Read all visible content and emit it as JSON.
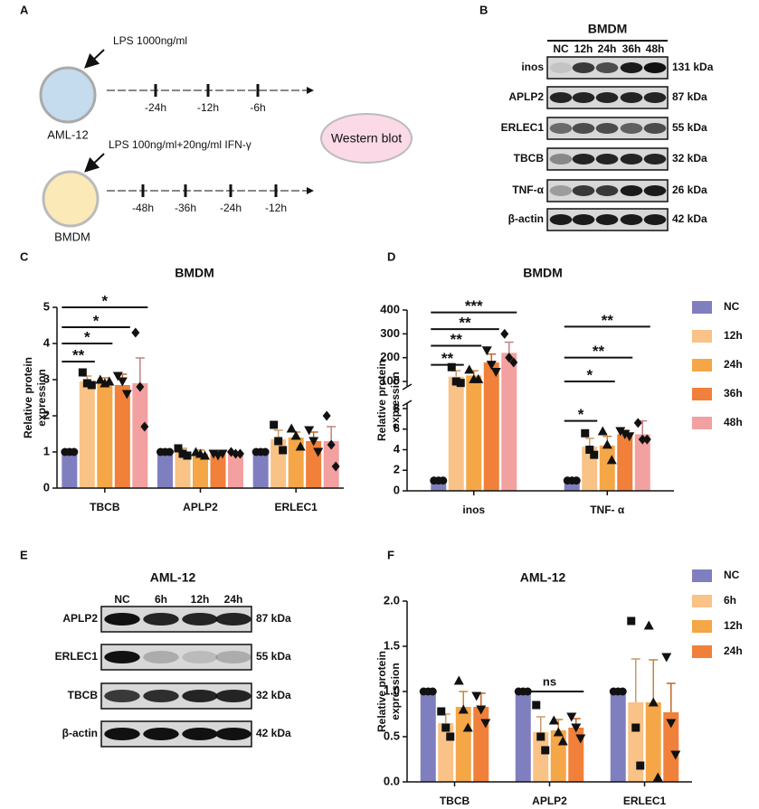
{
  "panel_labels": [
    "A",
    "B",
    "C",
    "D",
    "E",
    "F"
  ],
  "panel_a": {
    "groups": [
      {
        "cell": "AML-12",
        "treatment": "LPS 1000ng/ml",
        "timepoints": [
          "-24h",
          "-12h",
          "-6h"
        ]
      },
      {
        "cell": "BMDM",
        "treatment": "LPS 100ng/ml+20ng/ml IFN-γ",
        "timepoints": [
          "-48h",
          "-36h",
          "-24h",
          "-12h"
        ]
      }
    ],
    "endpoint": "Western blot"
  },
  "blots": [
    {
      "title": "BMDM",
      "lanes": [
        "NC",
        "12h",
        "24h",
        "36h",
        "48h"
      ],
      "rows": [
        {
          "protein": "inos",
          "size": "131 kDa"
        },
        {
          "protein": "APLP2",
          "size": "87 kDa"
        },
        {
          "protein": "ERLEC1",
          "size": "55 kDa"
        },
        {
          "protein": "TBCB",
          "size": "32 kDa"
        },
        {
          "protein": "TNF-α",
          "size": "26 kDa"
        },
        {
          "protein": "β-actin",
          "size": "42 kDa"
        }
      ]
    },
    {
      "title": "AML-12",
      "lanes": [
        "NC",
        "6h",
        "12h",
        "24h"
      ],
      "rows": [
        {
          "protein": "APLP2",
          "size": "87 kDa"
        },
        {
          "protein": "ERLEC1",
          "size": "55 kDa"
        },
        {
          "protein": "TBCB",
          "size": "32 kDa"
        },
        {
          "protein": "β-actin",
          "size": "42 kDa"
        }
      ]
    }
  ],
  "chart_data": [
    {
      "type": "bar",
      "title": "BMDM",
      "y_label": [
        "Relative protein",
        "expression"
      ],
      "categories": [
        "TBCB",
        "APLP2",
        "ERLEC1"
      ],
      "ylim": [
        0,
        5
      ],
      "yticks": [
        0,
        1,
        2,
        3,
        4,
        5
      ],
      "legend": false,
      "series": [
        {
          "color": "#7f7fc0",
          "marker": "circle",
          "values": [
            1,
            1,
            1
          ],
          "points": [
            [
              1,
              1,
              1
            ],
            [
              1,
              1,
              1
            ],
            [
              1,
              1,
              1
            ]
          ]
        },
        {
          "color": "#f9c286",
          "marker": "square",
          "values": [
            2.95,
            1,
            1.35
          ],
          "errors": [
            0.15,
            0.1,
            0.25
          ],
          "points": [
            [
              3.2,
              2.9,
              2.85
            ],
            [
              1.1,
              0.95,
              0.9
            ],
            [
              1.75,
              1.3,
              1.05
            ]
          ]
        },
        {
          "color": "#f5a646",
          "marker": "triangle",
          "values": [
            2.95,
            0.95,
            1.4
          ],
          "errors": [
            0.1,
            0.1,
            0.15
          ],
          "points": [
            [
              3.0,
              2.9,
              2.95
            ],
            [
              1.0,
              0.95,
              0.9
            ],
            [
              1.65,
              1.45,
              1.15
            ]
          ]
        },
        {
          "color": "#f0803a",
          "marker": "triangle-down",
          "values": [
            2.85,
            0.95,
            1.3
          ],
          "errors": [
            0.3,
            0.05,
            0.25
          ],
          "points": [
            [
              3.1,
              2.95,
              2.6
            ],
            [
              0.95,
              0.9,
              0.95
            ],
            [
              1.6,
              1.3,
              1.0
            ]
          ]
        },
        {
          "color": "#f3a0a0",
          "marker": "diamond",
          "values": [
            2.9,
            0.95,
            1.3
          ],
          "errors": [
            0.7,
            0.05,
            0.4
          ],
          "points": [
            [
              4.3,
              2.8,
              1.7
            ],
            [
              1.0,
              0.95,
              0.95
            ],
            [
              2.0,
              1.2,
              0.6
            ]
          ]
        }
      ],
      "annotations": [
        {
          "text": "**",
          "group": 0,
          "from": 0,
          "to": 1,
          "y": 3.5
        },
        {
          "text": "*",
          "group": 0,
          "from": 0,
          "to": 2,
          "y": 4.0
        },
        {
          "text": "*",
          "group": 0,
          "from": 0,
          "to": 3,
          "y": 4.45
        },
        {
          "text": "*",
          "group": 0,
          "from": 0,
          "to": 4,
          "y": 5.0
        }
      ]
    },
    {
      "type": "bar",
      "title": "BMDM",
      "y_label": [
        "Relative protein",
        "expression"
      ],
      "categories": [
        "inos",
        "TNF- α"
      ],
      "ylim": [
        0,
        400
      ],
      "ybreak": [
        8,
        100
      ],
      "yticks": [
        0,
        2,
        4,
        6,
        8,
        100,
        200,
        300,
        400
      ],
      "legend": true,
      "series": [
        {
          "name": "NC",
          "color": "#7f7fc0",
          "marker": "circle",
          "values": [
            1,
            1
          ],
          "points": [
            [
              1,
              1,
              1
            ],
            [
              1,
              1,
              1
            ]
          ]
        },
        {
          "name": "12h",
          "color": "#f9c286",
          "marker": "square",
          "values": [
            120,
            4.3
          ],
          "errors": [
            25,
            0.8
          ],
          "points": [
            [
              160,
              100,
              95
            ],
            [
              5.6,
              4.0,
              3.5
            ]
          ]
        },
        {
          "name": "24h",
          "color": "#f5a646",
          "marker": "triangle",
          "values": [
            125,
            4.4
          ],
          "errors": [
            20,
            0.9
          ],
          "points": [
            [
              150,
              110,
              110
            ],
            [
              5.8,
              4.5,
              3.0
            ]
          ]
        },
        {
          "name": "36h",
          "color": "#f0803a",
          "marker": "triangle-down",
          "values": [
            180,
            5.5
          ],
          "errors": [
            35,
            0.4
          ],
          "points": [
            [
              230,
              170,
              140
            ],
            [
              5.8,
              5.5,
              5.3
            ]
          ]
        },
        {
          "name": "48h",
          "color": "#f3a0a0",
          "marker": "diamond",
          "values": [
            220,
            5.5
          ],
          "errors": [
            45,
            1.3
          ],
          "points": [
            [
              300,
              200,
              180
            ],
            [
              6.6,
              5.0,
              5.0
            ]
          ]
        }
      ],
      "annotations": [
        {
          "text": "**",
          "group": 0,
          "from": 0,
          "to": 1,
          "y": 170
        },
        {
          "text": "**",
          "group": 0,
          "from": 0,
          "to": 2,
          "y": 250
        },
        {
          "text": "**",
          "group": 0,
          "from": 0,
          "to": 3,
          "y": 320
        },
        {
          "text": "***",
          "group": 0,
          "from": 0,
          "to": 4,
          "y": 390
        },
        {
          "text": "*",
          "group": 1,
          "from": 0,
          "to": 1,
          "y": 6.8
        },
        {
          "text": "*",
          "group": 1,
          "from": 0,
          "to": 2,
          "y": 100
        },
        {
          "text": "**",
          "group": 1,
          "from": 0,
          "to": 3,
          "y": 200
        },
        {
          "text": "**",
          "group": 1,
          "from": 0,
          "to": 4,
          "y": 330
        }
      ]
    },
    {
      "type": "bar",
      "title": "AML-12",
      "y_label": [
        "Relative protein",
        "expression"
      ],
      "categories": [
        "TBCB",
        "APLP2",
        "ERLEC1"
      ],
      "ylim": [
        0,
        2
      ],
      "yticks": [
        {
          "value": 0,
          "label": "0.0"
        },
        {
          "value": 0.5,
          "label": "0.5"
        },
        {
          "value": 1,
          "label": "1.0"
        },
        {
          "value": 1.5,
          "label": "1.5"
        },
        {
          "value": 2,
          "label": "2.0"
        }
      ],
      "legend": true,
      "series": [
        {
          "name": "NC",
          "color": "#7f7fc0",
          "marker": "circle",
          "values": [
            1,
            1,
            1
          ],
          "points": [
            [
              1,
              1,
              1
            ],
            [
              1,
              1,
              1
            ],
            [
              1,
              1,
              1
            ]
          ]
        },
        {
          "name": "6h",
          "color": "#f9c286",
          "marker": "square",
          "values": [
            0.65,
            0.55,
            0.88
          ],
          "errors": [
            0.1,
            0.17,
            0.48
          ],
          "points": [
            [
              0.78,
              0.6,
              0.5
            ],
            [
              0.85,
              0.5,
              0.35
            ],
            [
              1.78,
              0.6,
              0.18
            ]
          ]
        },
        {
          "name": "12h",
          "color": "#f5a646",
          "marker": "triangle",
          "values": [
            0.83,
            0.57,
            0.88
          ],
          "errors": [
            0.17,
            0.12,
            0.47
          ],
          "points": [
            [
              1.12,
              0.8,
              0.6
            ],
            [
              0.68,
              0.55,
              0.45
            ],
            [
              1.73,
              0.88,
              0.05
            ]
          ]
        },
        {
          "name": "24h",
          "color": "#f0803a",
          "marker": "triangle-down",
          "values": [
            0.83,
            0.6,
            0.77
          ],
          "errors": [
            0.15,
            0.1,
            0.32
          ],
          "points": [
            [
              0.95,
              0.8,
              0.65
            ],
            [
              0.72,
              0.6,
              0.48
            ],
            [
              1.38,
              0.65,
              0.3
            ]
          ]
        }
      ],
      "annotations": [
        {
          "text": "ns",
          "group": 1,
          "from": 0,
          "to": 3,
          "y": 1.0
        }
      ]
    }
  ]
}
